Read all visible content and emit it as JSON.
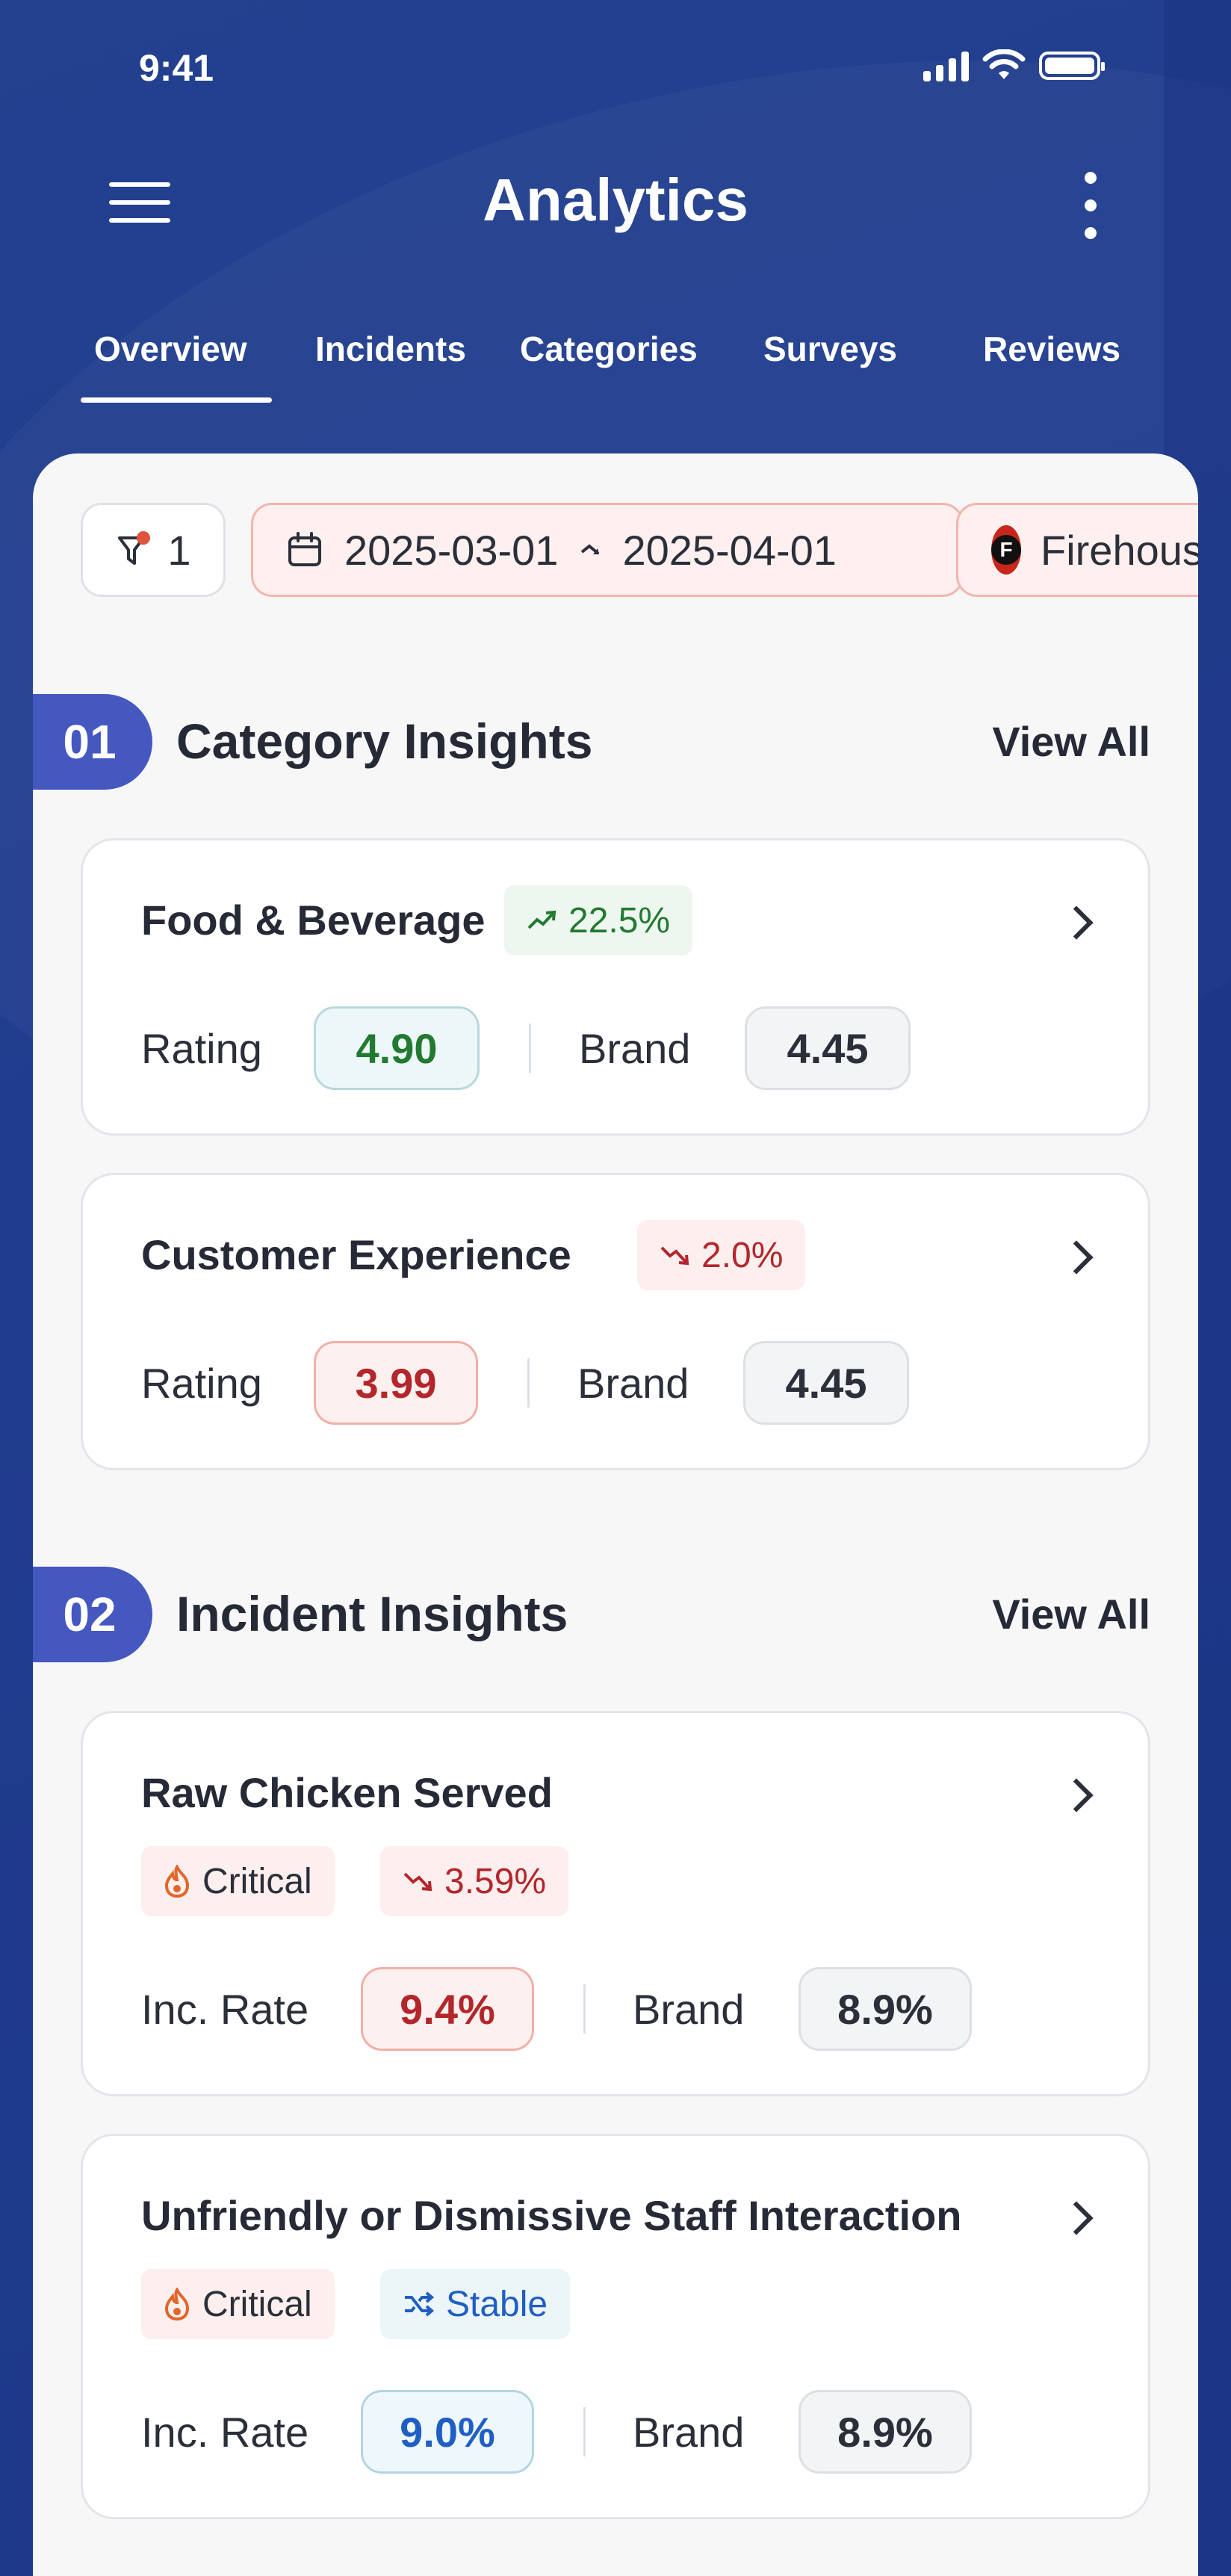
{
  "status_bar": {
    "time": "9:41"
  },
  "header": {
    "title": "Analytics"
  },
  "tabs": [
    {
      "label": "Overview",
      "active": true
    },
    {
      "label": "Incidents"
    },
    {
      "label": "Categories"
    },
    {
      "label": "Surveys"
    },
    {
      "label": "Reviews"
    }
  ],
  "filters": {
    "filter_count": "1",
    "date_range_start": "2025-03-01",
    "date_range_end": "2025-04-01",
    "brand": "Firehouse Subs",
    "brand_logo_letter": "F"
  },
  "category_section": {
    "number": "01",
    "title": "Category Insights",
    "view_all": "View All",
    "cards": [
      {
        "title": "Food & Beverage",
        "trend": "22.5%",
        "trend_direction": "up",
        "rating_label": "Rating",
        "rating": "4.90",
        "brand_label": "Brand",
        "brand_value": "4.45"
      },
      {
        "title": "Customer Experience",
        "trend": "2.0%",
        "trend_direction": "down",
        "rating_label": "Rating",
        "rating": "3.99",
        "brand_label": "Brand",
        "brand_value": "4.45"
      }
    ]
  },
  "incident_section": {
    "number": "02",
    "title": "Incident Insights",
    "view_all": "View All",
    "cards": [
      {
        "title": "Raw Chicken Served",
        "severity": "Critical",
        "trend": "3.59%",
        "trend_direction": "down",
        "rate_label": "Inc. Rate",
        "rate": "9.4%",
        "brand_label": "Brand",
        "brand_value": "8.9%"
      },
      {
        "title": "Unfriendly or Dismissive Staff Interaction",
        "severity": "Critical",
        "trend": "Stable",
        "trend_direction": "stable",
        "rate_label": "Inc. Rate",
        "rate": "9.0%",
        "brand_label": "Brand",
        "brand_value": "8.9%"
      }
    ]
  },
  "colors": {
    "header_bg": "#203c8e",
    "section_badge": "#4458c0",
    "positive": "#227a32",
    "negative": "#b3262b",
    "stable": "#1f5fc4"
  }
}
